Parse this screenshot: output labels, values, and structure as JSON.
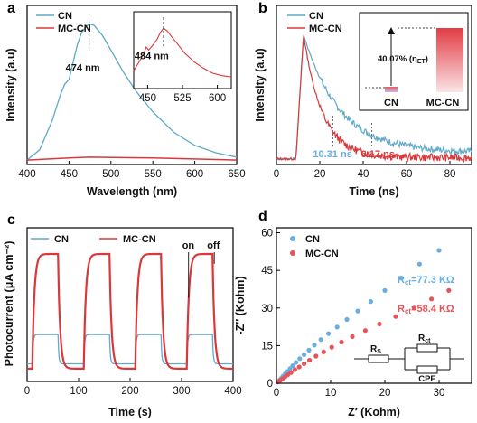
{
  "colors": {
    "cn": "#5fa9c9",
    "mccn": "#d9383a",
    "eis_cn": "#6aaee0",
    "eis_mccn": "#e4545a"
  },
  "chart_data": [
    {
      "panel": "a",
      "type": "line",
      "xlabel": "Wavelength (nm)",
      "ylabel": "Intensity (a.u)",
      "xlim": [
        400,
        650
      ],
      "xticks": [
        400,
        450,
        500,
        550,
        600,
        650
      ],
      "legend": "top-left",
      "series": [
        {
          "name": "CN",
          "x": [
            400,
            415,
            430,
            440,
            445,
            450,
            455,
            460,
            465,
            470,
            474,
            480,
            490,
            500,
            515,
            530,
            550,
            575,
            600,
            625,
            650
          ],
          "y": [
            0.03,
            0.1,
            0.3,
            0.48,
            0.55,
            0.58,
            0.7,
            0.82,
            0.9,
            0.94,
            0.96,
            0.95,
            0.88,
            0.78,
            0.63,
            0.5,
            0.36,
            0.22,
            0.13,
            0.08,
            0.05
          ]
        },
        {
          "name": "MC-CN",
          "x": [
            400,
            450,
            474,
            550,
            650
          ],
          "y": [
            0.03,
            0.045,
            0.05,
            0.045,
            0.03
          ]
        }
      ],
      "annotation": "474 nm",
      "inset": {
        "xticks": [
          450,
          525,
          600
        ],
        "xlim": [
          420,
          630
        ],
        "annotation": "484 nm",
        "x": [
          420,
          430,
          440,
          447,
          452,
          460,
          470,
          478,
          484,
          492,
          500,
          515,
          530,
          550,
          570,
          590,
          610,
          630
        ],
        "y": [
          0.2,
          0.32,
          0.45,
          0.58,
          0.53,
          0.6,
          0.7,
          0.82,
          0.88,
          0.84,
          0.76,
          0.62,
          0.48,
          0.34,
          0.24,
          0.16,
          0.12,
          0.1
        ]
      }
    },
    {
      "panel": "b",
      "type": "line",
      "xlabel": "Time (ns)",
      "ylabel": "Intensity (a.u)",
      "xlim": [
        0,
        90
      ],
      "xticks": [
        0,
        20,
        40,
        60,
        80
      ],
      "legend": "top-left",
      "series": [
        {
          "name": "CN",
          "tau": 10.31
        },
        {
          "name": "MC-CN",
          "tau": 6.17
        }
      ],
      "labels": [
        "10.31 ns",
        "6.17 ns"
      ],
      "inset": {
        "annotation": "40.07% (η",
        "sub": "ET",
        "close": ")",
        "bars": [
          "CN",
          "MC-CN"
        ]
      }
    },
    {
      "panel": "c",
      "type": "line",
      "xlabel": "Time (s)",
      "ylabel": "Photocurrent (μA cm⁻²)",
      "xlim": [
        0,
        400
      ],
      "xticks": [
        0,
        100,
        200,
        300,
        400
      ],
      "legend": "top",
      "cycles_on": [
        10,
        110,
        210,
        310
      ],
      "on_duration": 50,
      "series": [
        {
          "name": "CN",
          "dark": 0.5,
          "light": 1.7
        },
        {
          "name": "MC-CN",
          "dark": 0.3,
          "light": 5.0
        }
      ],
      "annotations": [
        "on",
        "off"
      ]
    },
    {
      "panel": "d",
      "type": "scatter",
      "xlabel": "Z′ (Kohm)",
      "ylabel": "-Z′′ (Kohm)",
      "xlim": [
        0,
        36
      ],
      "ylim": [
        0,
        62
      ],
      "xticks": [
        0,
        10,
        20,
        30
      ],
      "yticks": [
        0,
        15,
        30,
        45,
        60
      ],
      "legend": "top-left",
      "series": [
        {
          "name": "CN",
          "x": [
            0.3,
            0.6,
            0.9,
            1.2,
            1.6,
            2.0,
            2.5,
            3.0,
            3.6,
            4.3,
            5.1,
            6.0,
            7.0,
            8.2,
            9.6,
            11.2,
            13.0,
            15.0,
            17.4,
            20.0,
            23.0,
            26.4,
            30.0
          ],
          "y": [
            0.6,
            1.3,
            2.0,
            2.8,
            3.7,
            4.7,
            5.8,
            7.0,
            8.3,
            9.8,
            11.4,
            13.2,
            15.2,
            17.4,
            19.8,
            22.4,
            25.4,
            28.8,
            32.6,
            37.0,
            42.0,
            47.5,
            53.0
          ]
        },
        {
          "name": "MC-CN",
          "x": [
            0.3,
            0.7,
            1.1,
            1.6,
            2.1,
            2.7,
            3.4,
            4.2,
            5.1,
            6.1,
            7.3,
            8.7,
            10.2,
            12.0,
            14.0,
            16.4,
            19.0,
            22.0,
            25.4,
            28.6,
            31.8
          ],
          "y": [
            0.5,
            1.1,
            1.8,
            2.6,
            3.4,
            4.3,
            5.4,
            6.5,
            7.8,
            9.2,
            10.8,
            12.5,
            14.4,
            16.4,
            18.6,
            21.0,
            23.6,
            26.6,
            30.0,
            33.6,
            37.0
          ]
        }
      ],
      "labels": {
        "cn": "R",
        "cn_sub": "ct",
        "cn_val": "=77.3 KΩ",
        "mccn": "R",
        "mccn_sub": "ct",
        "mccn_val": "=58.4 KΩ"
      },
      "circuit": {
        "rs": "R",
        "rs_sub": "S",
        "rct": "R",
        "rct_sub": "ct",
        "cpe": "CPE"
      }
    }
  ]
}
